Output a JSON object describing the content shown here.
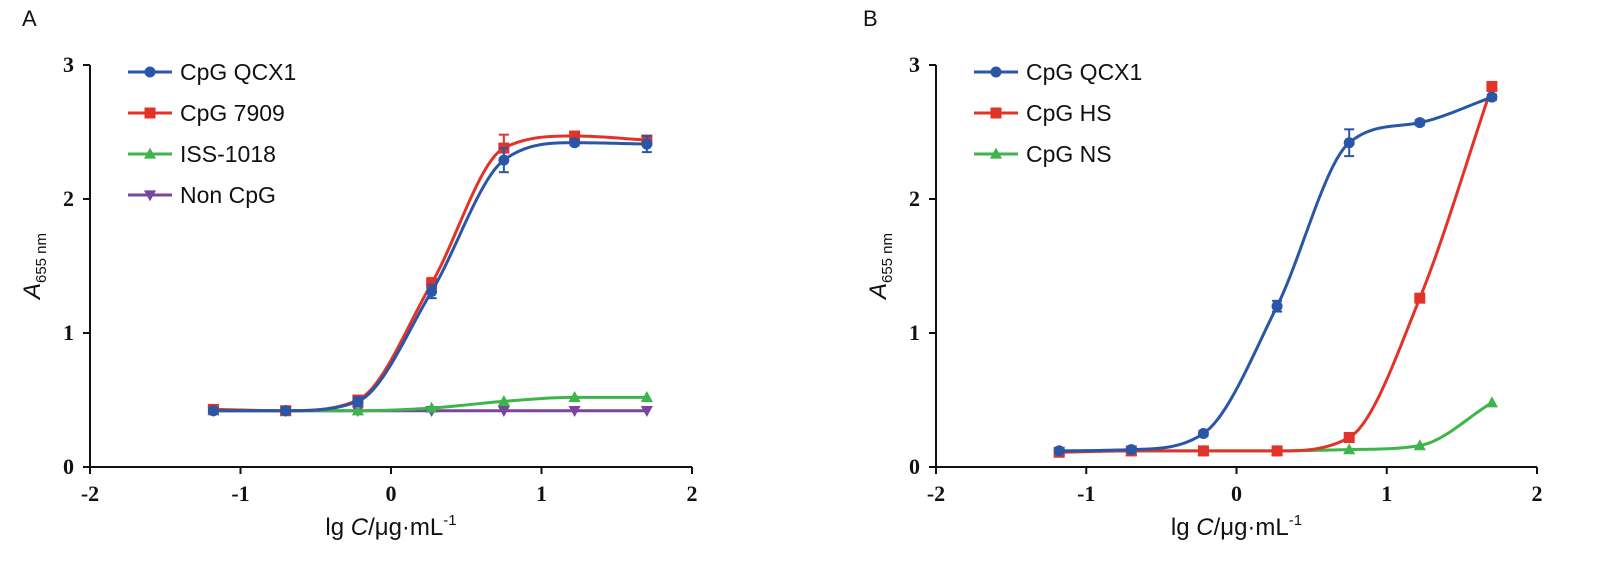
{
  "chart_data": [
    {
      "panel": "A",
      "type": "line",
      "xlabel": {
        "prefix": "lg ",
        "var": "C",
        "unit": "/μg·mL",
        "sup": "-1"
      },
      "ylabel": {
        "var": "A",
        "sub": "655 nm"
      },
      "xlim": [
        -2,
        2
      ],
      "ylim": [
        0,
        3
      ],
      "xticks": [
        -2,
        -1,
        0,
        1,
        2
      ],
      "yticks": [
        0,
        1,
        2,
        3
      ],
      "legend_position": "top-left",
      "series": [
        {
          "name": "CpG QCX1",
          "color": "#2a56a8",
          "marker": "circle",
          "x": [
            -1.18,
            -0.7,
            -0.22,
            0.27,
            0.75,
            1.22,
            1.7
          ],
          "y": [
            0.42,
            0.42,
            0.49,
            1.31,
            2.29,
            2.42,
            2.41
          ],
          "err": [
            0.02,
            0.02,
            0.03,
            0.05,
            0.09,
            0.02,
            0.06
          ]
        },
        {
          "name": "CpG 7909",
          "color": "#e23329",
          "marker": "square",
          "x": [
            -1.18,
            -0.7,
            -0.22,
            0.27,
            0.75,
            1.22,
            1.7
          ],
          "y": [
            0.43,
            0.42,
            0.5,
            1.37,
            2.38,
            2.47,
            2.44
          ],
          "err": [
            0.01,
            0.02,
            0.02,
            0.04,
            0.1,
            0.03,
            0.02
          ]
        },
        {
          "name": "ISS-1018",
          "color": "#3db54a",
          "marker": "triangle-up",
          "x": [
            -1.18,
            -0.7,
            -0.22,
            0.27,
            0.75,
            1.22,
            1.7
          ],
          "y": [
            0.42,
            0.42,
            0.42,
            0.44,
            0.49,
            0.52,
            0.52
          ],
          "err": [
            0,
            0,
            0,
            0,
            0,
            0,
            0
          ]
        },
        {
          "name": "Non CpG",
          "color": "#7a44a1",
          "marker": "triangle-down",
          "x": [
            -1.18,
            -0.7,
            -0.22,
            0.27,
            0.75,
            1.22,
            1.7
          ],
          "y": [
            0.42,
            0.42,
            0.42,
            0.42,
            0.42,
            0.42,
            0.42
          ],
          "err": [
            0,
            0,
            0,
            0,
            0,
            0,
            0
          ]
        }
      ]
    },
    {
      "panel": "B",
      "type": "line",
      "xlabel": {
        "prefix": "lg ",
        "var": "C",
        "unit": "/μg·mL",
        "sup": "-1"
      },
      "ylabel": {
        "var": "A",
        "sub": "655 nm"
      },
      "xlim": [
        -2,
        2
      ],
      "ylim": [
        0,
        3
      ],
      "xticks": [
        -2,
        -1,
        0,
        1,
        2
      ],
      "yticks": [
        0,
        1,
        2,
        3
      ],
      "legend_position": "top-left",
      "series": [
        {
          "name": "CpG QCX1",
          "color": "#2a56a8",
          "marker": "circle",
          "x": [
            -1.18,
            -0.7,
            -0.22,
            0.27,
            0.75,
            1.22,
            1.7
          ],
          "y": [
            0.12,
            0.13,
            0.25,
            1.2,
            2.42,
            2.57,
            2.76
          ],
          "err": [
            0.02,
            0.02,
            0.02,
            0.04,
            0.1,
            0.02,
            0.02
          ]
        },
        {
          "name": "CpG HS",
          "color": "#e23329",
          "marker": "square",
          "x": [
            -1.18,
            -0.7,
            -0.22,
            0.27,
            0.75,
            1.22,
            1.7
          ],
          "y": [
            0.11,
            0.12,
            0.12,
            0.12,
            0.22,
            1.26,
            2.84
          ],
          "err": [
            0.01,
            0.01,
            0.01,
            0.01,
            0.01,
            0.02,
            0.03
          ]
        },
        {
          "name": "CpG NS",
          "color": "#3db54a",
          "marker": "triangle-up",
          "x": [
            -1.18,
            -0.7,
            -0.22,
            0.27,
            0.75,
            1.22,
            1.7
          ],
          "y": [
            0.12,
            0.12,
            0.12,
            0.12,
            0.13,
            0.16,
            0.48
          ],
          "err": [
            0,
            0,
            0,
            0,
            0,
            0,
            0
          ]
        }
      ]
    }
  ]
}
